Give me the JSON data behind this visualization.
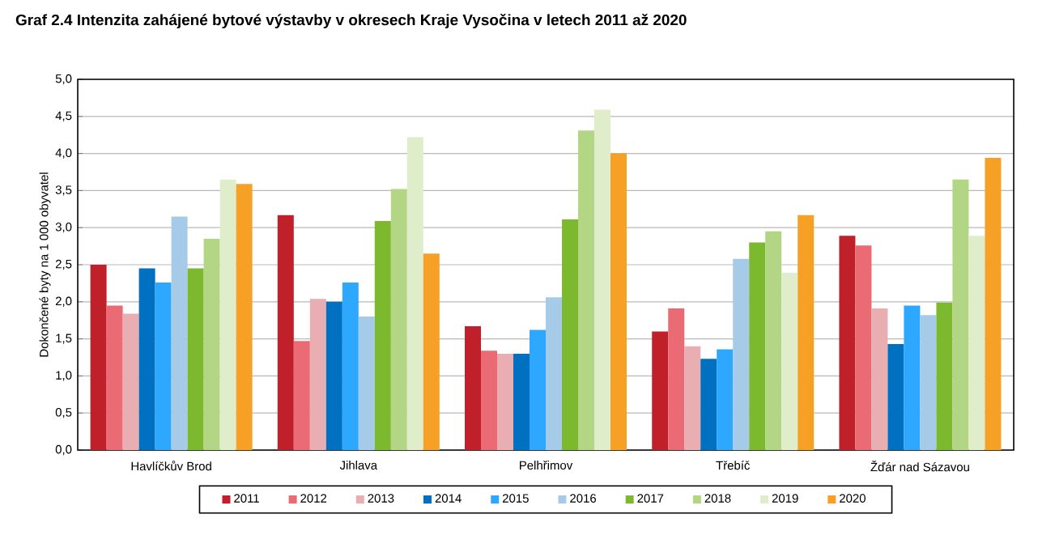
{
  "chart_data": {
    "type": "bar",
    "title": "Graf 2.4 Intenzita zahájené bytové výstavby v okresech Kraje Vysočina v letech 2011 až 2020",
    "ylabel": "Dokončené byty na 1 000 obyvatel",
    "categories": [
      "Havlíčkův Brod",
      "Jihlava",
      "Pelhřimov",
      "Třebíč",
      "Žďár nad Sázavou"
    ],
    "series": [
      {
        "name": "2011",
        "color": "#c0202a",
        "values": [
          2.5,
          3.17,
          1.67,
          1.6,
          2.89
        ]
      },
      {
        "name": "2012",
        "color": "#ea6b74",
        "values": [
          1.95,
          1.47,
          1.34,
          1.91,
          2.76
        ]
      },
      {
        "name": "2013",
        "color": "#e8aeb2",
        "values": [
          1.84,
          2.04,
          1.3,
          1.4,
          1.91
        ]
      },
      {
        "name": "2014",
        "color": "#0070c0",
        "values": [
          2.45,
          2.0,
          1.3,
          1.23,
          1.43
        ]
      },
      {
        "name": "2015",
        "color": "#2ea8ff",
        "values": [
          2.26,
          2.26,
          1.62,
          1.36,
          1.95
        ]
      },
      {
        "name": "2016",
        "color": "#a6cbe8",
        "values": [
          3.15,
          1.8,
          2.06,
          2.58,
          1.82
        ]
      },
      {
        "name": "2017",
        "color": "#7db92f",
        "values": [
          2.45,
          3.09,
          3.11,
          2.8,
          1.99
        ]
      },
      {
        "name": "2018",
        "color": "#b2d683",
        "values": [
          2.85,
          3.52,
          4.31,
          2.95,
          3.65
        ]
      },
      {
        "name": "2019",
        "color": "#dfedca",
        "values": [
          3.65,
          4.22,
          4.59,
          2.39,
          2.89
        ]
      },
      {
        "name": "2020",
        "color": "#f7a026",
        "values": [
          3.59,
          2.65,
          4.0,
          3.17,
          3.94
        ]
      }
    ],
    "ylim": [
      0,
      5
    ],
    "yticks": [
      {
        "value": 0,
        "label": "0,0"
      },
      {
        "value": 0.5,
        "label": "0,5"
      },
      {
        "value": 1,
        "label": "1,0"
      },
      {
        "value": 1.5,
        "label": "1,5"
      },
      {
        "value": 2,
        "label": "2,0"
      },
      {
        "value": 2.5,
        "label": "2,5"
      },
      {
        "value": 3,
        "label": "3,0"
      },
      {
        "value": 3.5,
        "label": "3,5"
      },
      {
        "value": 4,
        "label": "4,0"
      },
      {
        "value": 4.5,
        "label": "4,5"
      },
      {
        "value": 5,
        "label": "5,0"
      }
    ],
    "grid": "y",
    "legend": "bottom"
  }
}
